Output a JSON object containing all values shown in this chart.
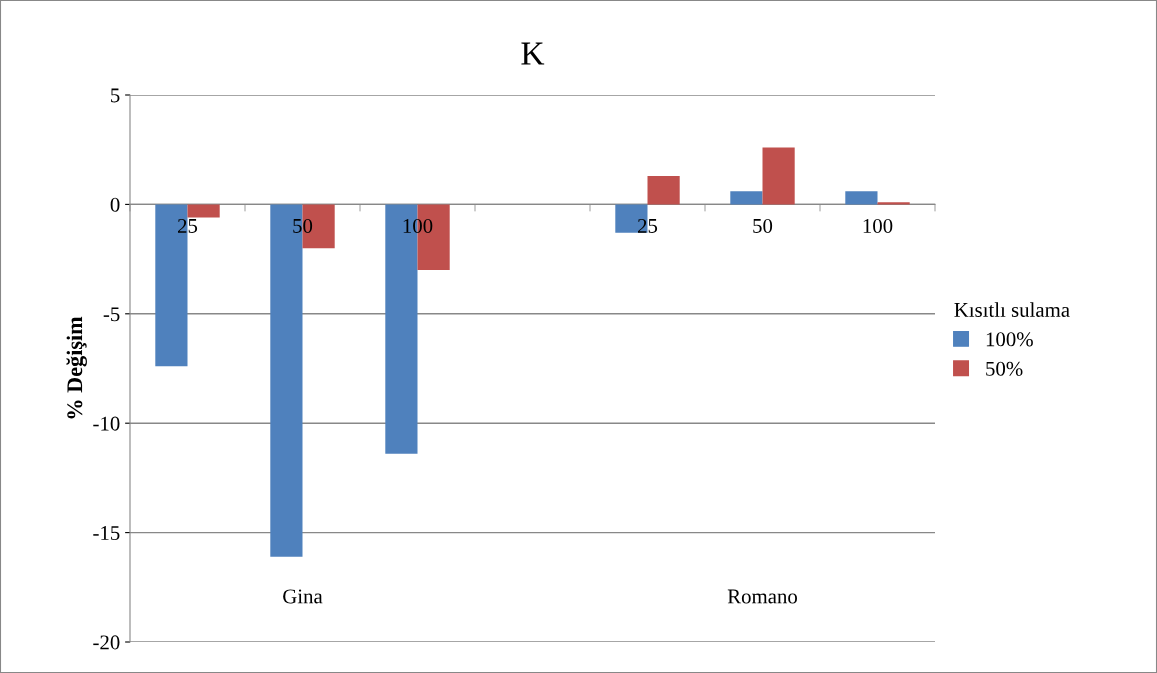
{
  "chart_data": {
    "type": "bar",
    "title": "K",
    "ylabel": "% Değişim",
    "legend_title": "Kısıtlı sulama",
    "categories": [
      "25",
      "50",
      "100",
      null,
      "25",
      "50",
      "100"
    ],
    "series": [
      {
        "name": "100%",
        "color": "#4f81bd",
        "values": [
          -7.4,
          -16.1,
          -11.4,
          null,
          -1.3,
          0.6,
          0.6
        ]
      },
      {
        "name": "50%",
        "color": "#c0504d",
        "values": [
          -0.6,
          -2.0,
          -3.0,
          null,
          1.3,
          2.6,
          0.1
        ]
      }
    ],
    "ylim": [
      -20,
      5
    ],
    "yticks": [
      -20,
      -15,
      -10,
      -5,
      0,
      5
    ],
    "grid": "y",
    "legend": "right",
    "annotations": [
      "Gina",
      "Romano"
    ]
  }
}
